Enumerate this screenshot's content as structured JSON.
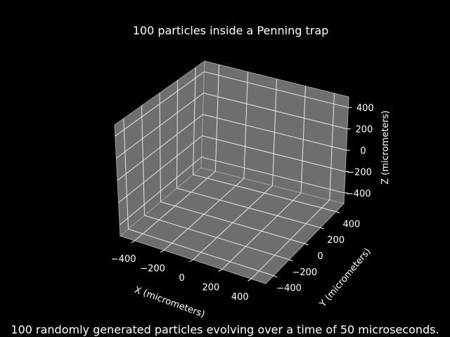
{
  "chart_data": {
    "type": "scatter3d",
    "title": "100 particles inside a Penning trap",
    "caption": "100 randomly generated particles evolving over a time of 50 microseconds.",
    "xlabel": "X (micrometers)",
    "ylabel": "Y (micrometers)",
    "zlabel": "Z (micrometers)",
    "xlim": [
      -500,
      500
    ],
    "ylim": [
      -500,
      500
    ],
    "zlim": [
      -500,
      500
    ],
    "xticks": [
      -400,
      -200,
      0,
      200,
      400
    ],
    "yticks": [
      -400,
      -200,
      0,
      200,
      400
    ],
    "zticks": [
      -400,
      -200,
      0,
      200,
      400
    ],
    "xtick_labels": [
      "−400",
      "−200",
      "0",
      "200",
      "400"
    ],
    "ytick_labels": [
      "−400",
      "−200",
      "0",
      "200",
      "400"
    ],
    "ztick_labels": [
      "−400",
      "−200",
      "0",
      "200",
      "400"
    ],
    "grid": true,
    "points": [],
    "colors": {
      "background": "#000000",
      "pane": "#6e6e6e",
      "grid": "#e6e6e6",
      "text": "#ffffff"
    }
  }
}
